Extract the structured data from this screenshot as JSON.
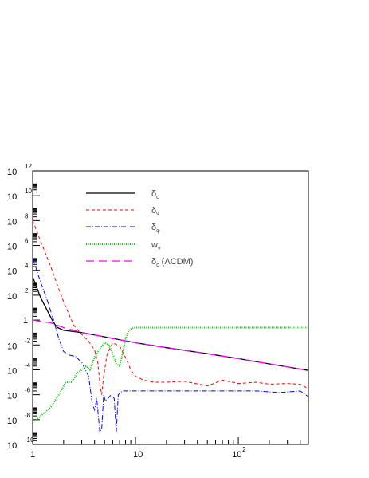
{
  "chart_data": {
    "type": "line",
    "title": "",
    "xlabel": "",
    "ylabel": "",
    "x_scale": "log",
    "y_scale": "log",
    "xlim": [
      1,
      480
    ],
    "ylim": [
      1e-10,
      1000000000000.0
    ],
    "grid": false,
    "legend_position": "top-left",
    "x_ticks": [
      {
        "value": 1,
        "base": "1",
        "exp": ""
      },
      {
        "value": 10,
        "base": "10",
        "exp": ""
      },
      {
        "value": 100,
        "base": "10",
        "exp": "2"
      }
    ],
    "y_ticks": [
      {
        "value": 1000000000000.0,
        "base": "10",
        "exp": "12"
      },
      {
        "value": 10000000000.0,
        "base": "10",
        "exp": "10"
      },
      {
        "value": 100000000.0,
        "base": "10",
        "exp": "8"
      },
      {
        "value": 1000000.0,
        "base": "10",
        "exp": "6"
      },
      {
        "value": 10000.0,
        "base": "10",
        "exp": "4"
      },
      {
        "value": 100.0,
        "base": "10",
        "exp": "2"
      },
      {
        "value": 1,
        "base": "1",
        "exp": ""
      },
      {
        "value": 0.01,
        "base": "10",
        "exp": "-2"
      },
      {
        "value": 0.0001,
        "base": "10",
        "exp": "-4"
      },
      {
        "value": 1e-06,
        "base": "10",
        "exp": "-6"
      },
      {
        "value": 1e-08,
        "base": "10",
        "exp": "-8"
      },
      {
        "value": 1e-10,
        "base": "10",
        "exp": "-10"
      }
    ],
    "series": [
      {
        "name": "δc",
        "label_main": "δ",
        "label_sub": "c",
        "label_tail": "",
        "color": "#000000",
        "dash": "",
        "width": 1.3,
        "x": [
          1,
          1.2,
          1.4,
          1.6,
          1.75,
          2,
          3,
          5,
          10,
          20,
          50,
          100,
          200,
          480
        ],
        "y": [
          3000,
          60,
          5,
          0.6,
          0.25,
          0.15,
          0.1,
          0.045,
          0.015,
          0.006,
          0.002,
          0.0008,
          0.0003,
          9e-05
        ]
      },
      {
        "name": "δν",
        "label_main": "δ",
        "label_sub": "ν",
        "label_tail": "",
        "color": "#ff0000",
        "dash": "4,3",
        "width": 1,
        "x": [
          1,
          1.2,
          1.5,
          1.8,
          2,
          2.5,
          3,
          3.5,
          4,
          4.3,
          4.55,
          4.7,
          4.9,
          5.3,
          6,
          7,
          8,
          9,
          10,
          12,
          15,
          20,
          30,
          50,
          70,
          100,
          150,
          200,
          300,
          400,
          480
        ],
        "y": [
          100000000.0,
          2000000.0,
          20000.0,
          300,
          30,
          0.4,
          0.07,
          0.02,
          0.004,
          0.0004,
          4e-06,
          1e-06,
          3e-05,
          0.002,
          0.015,
          0.008,
          0.001,
          0.0001,
          3e-05,
          1.5e-05,
          1e-05,
          1e-05,
          1.2e-05,
          5e-06,
          1.5e-05,
          8e-06,
          1e-05,
          7e-06,
          8e-06,
          7e-06,
          3e-06
        ]
      },
      {
        "name": "δφ",
        "label_main": "δ",
        "label_sub": "φ",
        "label_tail": "",
        "color": "#0000ff",
        "dash": "6,2,1,2",
        "width": 1,
        "x": [
          1,
          1.2,
          1.4,
          1.6,
          1.8,
          2,
          2.3,
          2.6,
          3,
          3.5,
          3.8,
          4,
          4.2,
          4.5,
          4.7,
          4.9,
          5.1,
          5.4,
          5.8,
          6.2,
          6.5,
          6.8,
          7.5,
          9,
          12,
          20,
          40,
          80,
          150,
          250,
          400,
          480
        ],
        "y": [
          100000.0,
          1000,
          30,
          1,
          0.03,
          0.003,
          0.0015,
          0.0012,
          0.0004,
          3e-05,
          2e-07,
          6e-08,
          5e-07,
          1e-09,
          2e-09,
          1e-06,
          3e-07,
          5e-07,
          1e-06,
          5e-07,
          1e-09,
          1e-06,
          2e-06,
          2e-06,
          2e-06,
          2e-06,
          2e-06,
          2e-06,
          2e-06,
          1.5e-06,
          2e-06,
          7e-07
        ]
      },
      {
        "name": "wν",
        "label_main": "w",
        "label_sub": "ν",
        "label_tail": "",
        "color": "#00cc00",
        "dash": "1,1.5",
        "width": 2,
        "x": [
          1,
          1.2,
          1.5,
          1.8,
          2.1,
          2.4,
          2.7,
          3,
          3.3,
          3.6,
          4,
          4.5,
          5,
          5.5,
          6,
          6.5,
          7,
          7.5,
          8,
          8.6,
          9.5,
          11,
          20,
          50,
          100,
          200,
          480
        ],
        "y": [
          6e-09,
          2e-08,
          1e-07,
          1e-06,
          1e-05,
          1e-05,
          5e-05,
          0.0001,
          0.0002,
          0.0001,
          0.001,
          0.005,
          0.015,
          0.01,
          0.002,
          0.0003,
          0.0002,
          0.002,
          0.03,
          0.15,
          0.25,
          0.25,
          0.25,
          0.25,
          0.25,
          0.25,
          0.25
        ]
      },
      {
        "name": "δc (ΛCDM)",
        "label_main": "δ",
        "label_sub": "c",
        "label_tail": " (ΛCDM)",
        "color": "#ff00ff",
        "dash": "10,6",
        "width": 1.3,
        "x": [
          1,
          1.5,
          2,
          3,
          5,
          10,
          20,
          50,
          100,
          200,
          480
        ],
        "y": [
          1,
          0.6,
          0.25,
          0.1,
          0.045,
          0.015,
          0.006,
          0.002,
          0.0008,
          0.0003,
          9e-05
        ]
      }
    ]
  }
}
